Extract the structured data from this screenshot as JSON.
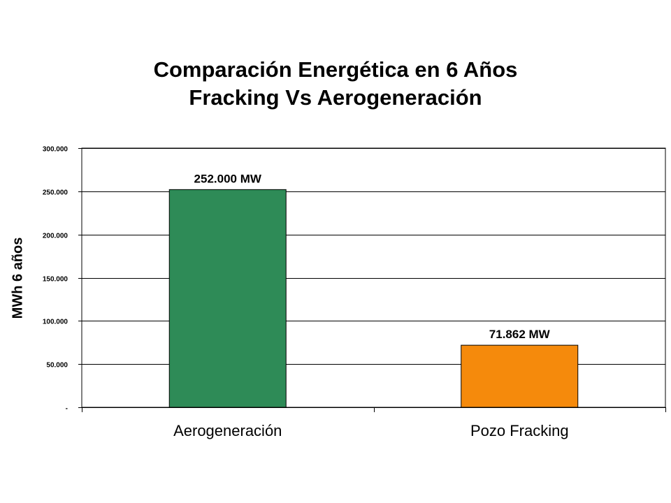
{
  "chart_data": {
    "type": "bar",
    "title": [
      "Comparación Energética en 6 Años",
      "Fracking Vs Aerogeneración"
    ],
    "ylabel": "MWh 6 años",
    "xlabel": "",
    "categories": [
      "Aerogeneración",
      "Pozo Fracking"
    ],
    "values": [
      252000,
      71862
    ],
    "data_labels": [
      "252.000 MW",
      "71.862 MW"
    ],
    "bar_colors": [
      "#2e8b57",
      "#f58a0c"
    ],
    "ylim": [
      0,
      300000
    ],
    "y_ticks": [
      0,
      50000,
      100000,
      150000,
      200000,
      250000,
      300000
    ],
    "y_tick_labels": [
      "-",
      "50.000",
      "100.000",
      "150.000",
      "200.000",
      "250.000",
      "300.000"
    ],
    "grid": true,
    "legend": "none"
  }
}
